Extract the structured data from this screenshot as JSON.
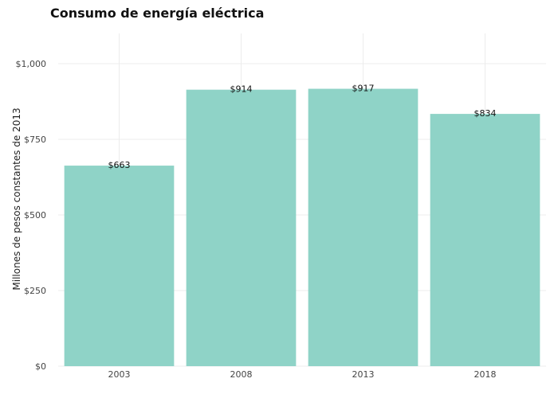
{
  "chart_data": {
    "type": "bar",
    "title": "Consumo de energía eléctrica",
    "xlabel": "",
    "ylabel": "Millones de pesos constantes de 2013",
    "categories": [
      "2003",
      "2008",
      "2013",
      "2018"
    ],
    "values": [
      663,
      914,
      917,
      834
    ],
    "data_labels": [
      "$663",
      "$914",
      "$917",
      "$834"
    ],
    "y_ticks": [
      0,
      250,
      500,
      750,
      1000
    ],
    "y_tick_labels": [
      "$0",
      "$250",
      "$500",
      "$750",
      "$1,000"
    ],
    "ylim": [
      0,
      1100
    ],
    "grid": true,
    "legend": "none",
    "bar_color": "#8fd3c7"
  }
}
